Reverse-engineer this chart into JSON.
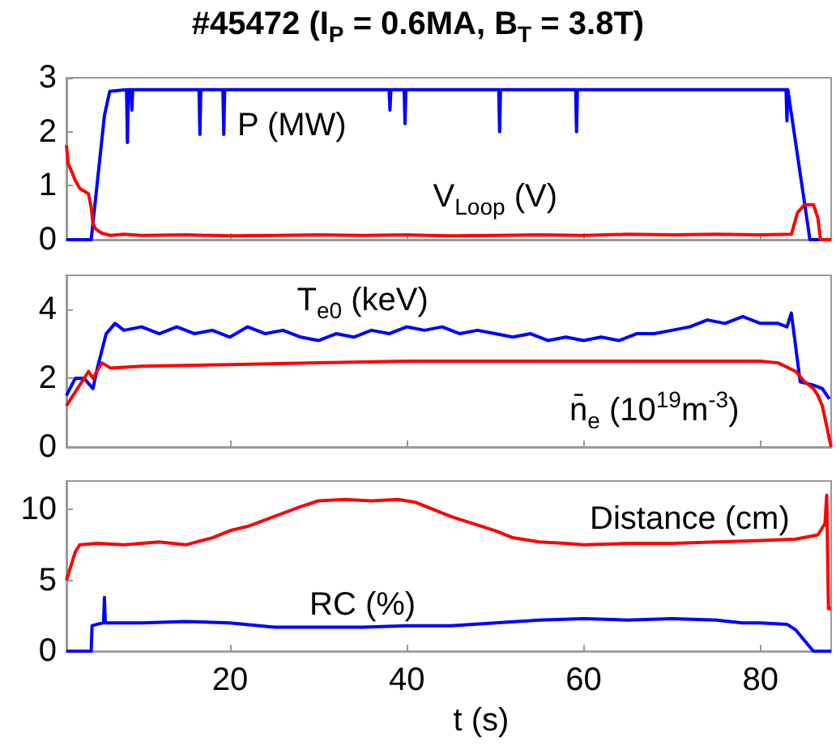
{
  "chart_data": [
    {
      "type": "line",
      "title": "#45472 (I$_{P}$ = 0.6MA, B$_{T}$ = 3.8T)",
      "xlim": [
        1.5,
        88
      ],
      "xticks": [
        20,
        40,
        60,
        80
      ],
      "ylim": [
        0,
        3
      ],
      "yticks": [
        0,
        1,
        2,
        3
      ],
      "tick_labels": "y",
      "grid": false,
      "marker": "none",
      "line_style": "solid",
      "series": [
        {
          "name": "P (MW)",
          "color": "#0000ff",
          "x": [
            1.5,
            4.3,
            5.8,
            6.4,
            8.3,
            8.4,
            8.5,
            8.8,
            8.9,
            9.0,
            16.5,
            16.6,
            16.7,
            19.2,
            19.3,
            19.4,
            38.0,
            38.1,
            38.2,
            39.7,
            39.8,
            39.9,
            50.4,
            50.5,
            50.6,
            59.1,
            59.2,
            59.3,
            82.9,
            83.0,
            83.1,
            83.2,
            85.6,
            88
          ],
          "values": [
            0,
            0,
            2.3,
            2.75,
            2.78,
            1.8,
            2.78,
            2.78,
            2.4,
            2.78,
            2.78,
            1.95,
            2.78,
            2.78,
            1.95,
            2.78,
            2.78,
            2.4,
            2.78,
            2.78,
            2.15,
            2.78,
            2.78,
            2.0,
            2.78,
            2.78,
            2.0,
            2.78,
            2.78,
            2.2,
            2.78,
            2.78,
            0,
            0
          ]
        },
        {
          "name": "V$_{Loop}$ (V)",
          "color": "#ff0000",
          "x": [
            1.5,
            1.7,
            2.0,
            2.5,
            3.0,
            3.5,
            4.0,
            4.3,
            4.5,
            4.8,
            5.5,
            6.5,
            8,
            10,
            15,
            20,
            25,
            30,
            35,
            40,
            45,
            50,
            55,
            60,
            65,
            70,
            75,
            80,
            83.5,
            84.2,
            85,
            86,
            86.5,
            86.8,
            88
          ],
          "values": [
            1.75,
            1.4,
            1.3,
            1.1,
            0.95,
            0.9,
            0.85,
            0.6,
            0.3,
            0.2,
            0.12,
            0.08,
            0.1,
            0.08,
            0.09,
            0.07,
            0.08,
            0.09,
            0.08,
            0.09,
            0.07,
            0.08,
            0.09,
            0.08,
            0.1,
            0.09,
            0.1,
            0.09,
            0.1,
            0.5,
            0.65,
            0.65,
            0.4,
            0,
            0
          ]
        }
      ]
    },
    {
      "type": "line",
      "xlim": [
        1.5,
        88
      ],
      "xticks": [
        20,
        40,
        60,
        80
      ],
      "ylim": [
        0,
        5
      ],
      "yticks": [
        0,
        2,
        4
      ],
      "tick_labels": "y",
      "grid": false,
      "marker": "none",
      "line_style": "solid",
      "series": [
        {
          "name": "T$_{e0}$ (keV)",
          "color": "#0000ff",
          "x": [
            1.5,
            2.5,
            3.5,
            4.5,
            5,
            6,
            7,
            8,
            10,
            12,
            14,
            16,
            18,
            20,
            22,
            24,
            26,
            28,
            30,
            32,
            34,
            36,
            38,
            40,
            42,
            44,
            46,
            48,
            50,
            52,
            54,
            56,
            58,
            60,
            62,
            64,
            66,
            68,
            70,
            72,
            74,
            76,
            78,
            80,
            82,
            83,
            83.5,
            84.5,
            86,
            87,
            87.8
          ],
          "values": [
            1.5,
            2.0,
            2.0,
            1.7,
            2.3,
            3.3,
            3.6,
            3.4,
            3.5,
            3.3,
            3.5,
            3.3,
            3.4,
            3.2,
            3.5,
            3.3,
            3.4,
            3.2,
            3.1,
            3.3,
            3.2,
            3.4,
            3.3,
            3.5,
            3.4,
            3.5,
            3.3,
            3.4,
            3.3,
            3.2,
            3.3,
            3.1,
            3.2,
            3.1,
            3.2,
            3.1,
            3.3,
            3.3,
            3.4,
            3.5,
            3.7,
            3.6,
            3.8,
            3.6,
            3.6,
            3.5,
            3.9,
            1.9,
            1.8,
            1.7,
            1.4
          ]
        },
        {
          "name": "n̄$_{e}$ (10$^{19}$m$^{-3}$)",
          "color": "#ff0000",
          "x": [
            1.5,
            3,
            4,
            4.5,
            5.5,
            6.5,
            10,
            20,
            30,
            40,
            50,
            60,
            70,
            80,
            82,
            84,
            85,
            86,
            86.5,
            87,
            88
          ],
          "values": [
            1.2,
            1.8,
            2.2,
            2.0,
            2.45,
            2.3,
            2.35,
            2.4,
            2.45,
            2.5,
            2.5,
            2.5,
            2.5,
            2.5,
            2.45,
            2.2,
            1.9,
            1.7,
            1.5,
            1.2,
            0
          ]
        }
      ]
    },
    {
      "type": "line",
      "xlabel": "t (s)",
      "xlim": [
        1.5,
        88
      ],
      "xticks": [
        20,
        40,
        60,
        80
      ],
      "ylim": [
        0,
        12
      ],
      "yticks": [
        0,
        5,
        10
      ],
      "grid": false,
      "marker": "none",
      "line_style": "solid",
      "series": [
        {
          "name": "Distance (cm)",
          "color": "#ff0000",
          "x": [
            1.5,
            2.5,
            3,
            5,
            8,
            10,
            12,
            15,
            18,
            20,
            22,
            25,
            28,
            30,
            33,
            36,
            39,
            41,
            43,
            45,
            48,
            50,
            52,
            55,
            58,
            60,
            65,
            70,
            75,
            80,
            84,
            86.5,
            87.3,
            87.5,
            87.7,
            88
          ],
          "values": [
            5,
            7,
            7.5,
            7.6,
            7.5,
            7.6,
            7.7,
            7.5,
            8.0,
            8.5,
            8.8,
            9.5,
            10.2,
            10.6,
            10.7,
            10.6,
            10.7,
            10.5,
            10.0,
            9.5,
            8.9,
            8.5,
            8.0,
            7.7,
            7.6,
            7.5,
            7.6,
            7.6,
            7.7,
            7.8,
            7.9,
            8.2,
            9.0,
            11.0,
            3.0,
            3.0
          ]
        },
        {
          "name": "RC (%)",
          "color": "#0000ff",
          "x": [
            1.5,
            4.3,
            4.4,
            5,
            5.7,
            5.8,
            5.9,
            7,
            10,
            15,
            20,
            25,
            30,
            35,
            40,
            45,
            50,
            55,
            60,
            65,
            70,
            75,
            78,
            80,
            83,
            84,
            86,
            88
          ],
          "values": [
            0,
            0,
            1.8,
            1.9,
            2.0,
            3.8,
            2.0,
            2.0,
            2.0,
            2.1,
            2.0,
            1.7,
            1.7,
            1.7,
            1.8,
            1.8,
            2.0,
            2.2,
            2.3,
            2.2,
            2.3,
            2.2,
            2.0,
            2.0,
            1.9,
            1.5,
            0,
            0
          ]
        }
      ]
    }
  ]
}
